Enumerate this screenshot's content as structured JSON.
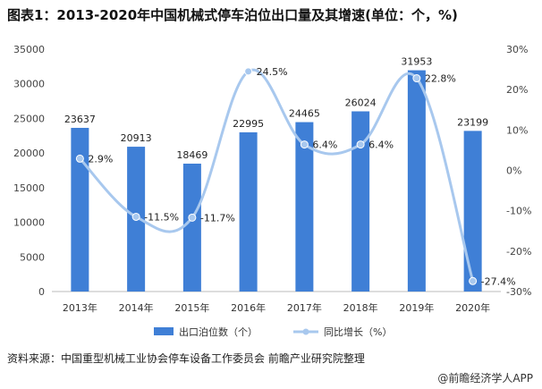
{
  "title": "图表1：2013-2020年中国机械式停车泊位出口量及其增速(单位：个，%)",
  "source": "资料来源：中国重型机械工业协会停车设备工作委员会 前瞻产业研究院整理",
  "brand": "@前瞻经济学人APP",
  "colors": {
    "bar": "#3f7fd6",
    "line": "#a8c8ee",
    "marker": "#a8c8ee"
  },
  "chart_data": {
    "type": "bar+line",
    "categories": [
      "2013年",
      "2014年",
      "2015年",
      "2016年",
      "2017年",
      "2018年",
      "2019年",
      "2020年"
    ],
    "series": [
      {
        "name": "出口泊位数（个）",
        "type": "bar",
        "axis": "left",
        "values": [
          23637,
          20913,
          18469,
          22995,
          24465,
          26024,
          31953,
          23199
        ],
        "labels": [
          "23637",
          "20913",
          "18469",
          "22995",
          "24465",
          "26024",
          "31953",
          "23199"
        ]
      },
      {
        "name": "同比增长（%）",
        "type": "line",
        "axis": "right",
        "values": [
          2.9,
          -11.5,
          -11.7,
          24.5,
          6.4,
          6.4,
          22.8,
          -27.4
        ],
        "labels": [
          "2.9%",
          "-11.5%",
          "-11.7%",
          "24.5%",
          "6.4%",
          "6.4%",
          "22.8%",
          "-27.4%"
        ]
      }
    ],
    "left_axis": {
      "ylim": [
        0,
        35000
      ],
      "ticks": [
        "0",
        "5000",
        "10000",
        "15000",
        "20000",
        "25000",
        "30000",
        "35000"
      ]
    },
    "right_axis": {
      "ylim": [
        -30,
        30
      ],
      "ticks": [
        "-30%",
        "-20%",
        "-10%",
        "0%",
        "10%",
        "20%",
        "30%"
      ]
    },
    "grid": false,
    "legend_position": "bottom"
  }
}
